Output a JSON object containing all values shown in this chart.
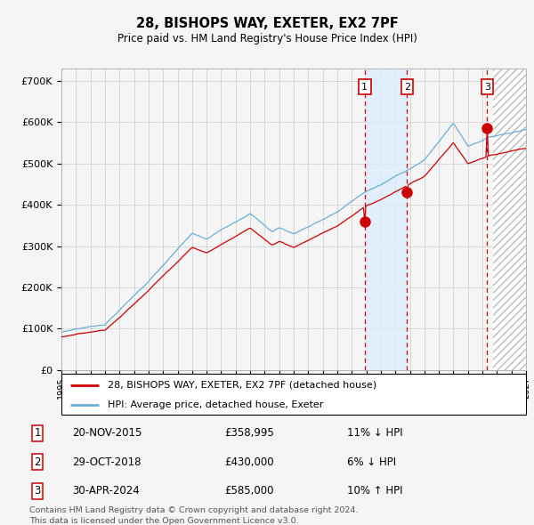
{
  "title": "28, BISHOPS WAY, EXETER, EX2 7PF",
  "subtitle": "Price paid vs. HM Land Registry's House Price Index (HPI)",
  "x_start_year": 1995,
  "x_end_year": 2027,
  "yticks": [
    0,
    100000,
    200000,
    300000,
    400000,
    500000,
    600000,
    700000
  ],
  "ytick_labels": [
    "£0",
    "£100K",
    "£200K",
    "£300K",
    "£400K",
    "£500K",
    "£600K",
    "£700K"
  ],
  "sale_dates": [
    "20-NOV-2015",
    "29-OCT-2018",
    "30-APR-2024"
  ],
  "sale_prices": [
    358995,
    430000,
    585000
  ],
  "sale_labels": [
    "1",
    "2",
    "3"
  ],
  "sale_hpi_diff": [
    "11% ↓ HPI",
    "6% ↓ HPI",
    "10% ↑ HPI"
  ],
  "hpi_color": "#6baed6",
  "price_color": "#cc0000",
  "point_color": "#cc0000",
  "vline_color": "#cc0000",
  "shade_color": "#ddeeff",
  "grid_color": "#cccccc",
  "bg_color": "#f5f5f5",
  "legend_label_price": "28, BISHOPS WAY, EXETER, EX2 7PF (detached house)",
  "legend_label_hpi": "HPI: Average price, detached house, Exeter",
  "footer": "Contains HM Land Registry data © Crown copyright and database right 2024.\nThis data is licensed under the Open Government Licence v3.0."
}
